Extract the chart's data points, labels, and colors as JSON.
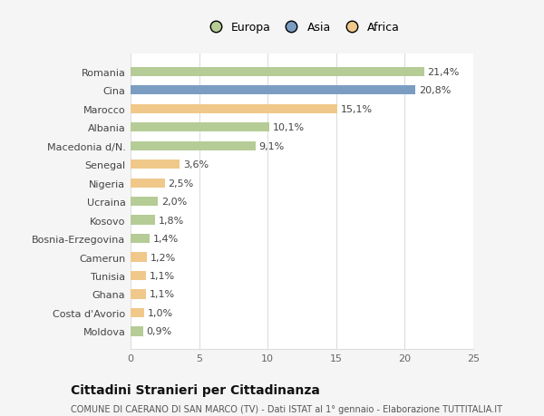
{
  "countries": [
    "Moldova",
    "Costa d'Avorio",
    "Ghana",
    "Tunisia",
    "Camerun",
    "Bosnia-Erzegovina",
    "Kosovo",
    "Ucraina",
    "Nigeria",
    "Senegal",
    "Macedonia d/N.",
    "Albania",
    "Marocco",
    "Cina",
    "Romania"
  ],
  "values": [
    0.9,
    1.0,
    1.1,
    1.1,
    1.2,
    1.4,
    1.8,
    2.0,
    2.5,
    3.6,
    9.1,
    10.1,
    15.1,
    20.8,
    21.4
  ],
  "labels": [
    "0,9%",
    "1,0%",
    "1,1%",
    "1,1%",
    "1,2%",
    "1,4%",
    "1,8%",
    "2,0%",
    "2,5%",
    "3,6%",
    "9,1%",
    "10,1%",
    "15,1%",
    "20,8%",
    "21,4%"
  ],
  "continents": [
    "Europa",
    "Africa",
    "Africa",
    "Africa",
    "Africa",
    "Europa",
    "Europa",
    "Europa",
    "Africa",
    "Africa",
    "Europa",
    "Europa",
    "Africa",
    "Asia",
    "Europa"
  ],
  "colors": {
    "Europa": "#b5cc96",
    "Asia": "#7b9dc2",
    "Africa": "#f0c88a"
  },
  "legend_labels": [
    "Europa",
    "Asia",
    "Africa"
  ],
  "legend_colors": [
    "#b5cc96",
    "#7b9dc2",
    "#f0c88a"
  ],
  "title": "Cittadini Stranieri per Cittadinanza",
  "subtitle": "COMUNE DI CAERANO DI SAN MARCO (TV) - Dati ISTAT al 1° gennaio - Elaborazione TUTTITALIA.IT",
  "xlim": [
    0,
    25
  ],
  "xticks": [
    0,
    5,
    10,
    15,
    20,
    25
  ],
  "background_color": "#f5f5f5",
  "plot_bg": "#ffffff",
  "grid_color": "#dddddd",
  "label_fontsize": 8,
  "tick_fontsize": 8,
  "title_fontsize": 10,
  "subtitle_fontsize": 7
}
